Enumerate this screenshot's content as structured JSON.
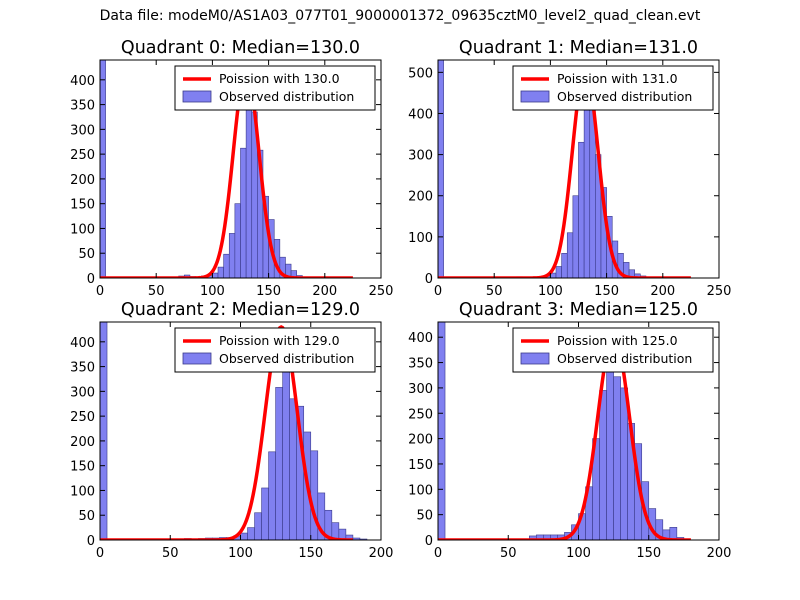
{
  "figure": {
    "suptitle": "Data file: modeM0/AS1A03_077T01_9000001372_09635cztM0_level2_quad_clean.evt"
  },
  "colors": {
    "hist_fill": "#8080f0",
    "hist_edge": "#3a3a8a",
    "poisson_line": "#ff0000",
    "legend_edge": "#000000"
  },
  "chart_data": [
    {
      "type": "bar",
      "title": "Quadrant 0: Median=130.0",
      "xlim": [
        0,
        250
      ],
      "ylim": [
        0,
        440
      ],
      "xticks": [
        0,
        50,
        100,
        150,
        200,
        250
      ],
      "yticks": [
        0,
        50,
        100,
        150,
        200,
        250,
        300,
        350,
        400
      ],
      "bin_width": 5,
      "legend": [
        "Poission with 130.0",
        "Observed distribution"
      ],
      "mu": 130,
      "peak": 420,
      "hist": [
        [
          0,
          440
        ],
        [
          70,
          4
        ],
        [
          75,
          6
        ],
        [
          80,
          3
        ],
        [
          85,
          2
        ],
        [
          90,
          4
        ],
        [
          95,
          5
        ],
        [
          100,
          10
        ],
        [
          105,
          22
        ],
        [
          110,
          48
        ],
        [
          115,
          90
        ],
        [
          120,
          150
        ],
        [
          125,
          262
        ],
        [
          130,
          380
        ],
        [
          135,
          335
        ],
        [
          140,
          258
        ],
        [
          145,
          165
        ],
        [
          150,
          118
        ],
        [
          155,
          78
        ],
        [
          160,
          42
        ],
        [
          165,
          28
        ],
        [
          170,
          15
        ],
        [
          175,
          5
        ]
      ]
    },
    {
      "type": "bar",
      "title": "Quadrant 1: Median=131.0",
      "xlim": [
        0,
        250
      ],
      "ylim": [
        0,
        530
      ],
      "xticks": [
        0,
        50,
        100,
        150,
        200,
        250
      ],
      "yticks": [
        0,
        100,
        200,
        300,
        400,
        500
      ],
      "bin_width": 5,
      "legend": [
        "Poission with 131.0",
        "Observed distribution"
      ],
      "mu": 131,
      "peak": 510,
      "hist": [
        [
          0,
          530
        ],
        [
          70,
          3
        ],
        [
          80,
          2
        ],
        [
          90,
          4
        ],
        [
          95,
          5
        ],
        [
          100,
          12
        ],
        [
          105,
          28
        ],
        [
          110,
          60
        ],
        [
          115,
          110
        ],
        [
          120,
          200
        ],
        [
          125,
          330
        ],
        [
          130,
          460
        ],
        [
          135,
          420
        ],
        [
          140,
          300
        ],
        [
          145,
          220
        ],
        [
          150,
          150
        ],
        [
          155,
          90
        ],
        [
          160,
          60
        ],
        [
          165,
          38
        ],
        [
          170,
          20
        ],
        [
          175,
          10
        ],
        [
          180,
          5
        ]
      ]
    },
    {
      "type": "bar",
      "title": "Quadrant 2: Median=129.0",
      "xlim": [
        0,
        200
      ],
      "ylim": [
        0,
        440
      ],
      "xticks": [
        0,
        50,
        100,
        150,
        200
      ],
      "yticks": [
        0,
        50,
        100,
        150,
        200,
        250,
        300,
        350,
        400
      ],
      "bin_width": 5,
      "legend": [
        "Poission with 129.0",
        "Observed distribution"
      ],
      "mu": 129,
      "peak": 430,
      "hist": [
        [
          0,
          440
        ],
        [
          60,
          3
        ],
        [
          70,
          3
        ],
        [
          75,
          4
        ],
        [
          80,
          4
        ],
        [
          85,
          5
        ],
        [
          90,
          5
        ],
        [
          95,
          8
        ],
        [
          100,
          14
        ],
        [
          105,
          25
        ],
        [
          110,
          55
        ],
        [
          115,
          105
        ],
        [
          120,
          178
        ],
        [
          125,
          308
        ],
        [
          130,
          420
        ],
        [
          135,
          285
        ],
        [
          140,
          270
        ],
        [
          145,
          218
        ],
        [
          150,
          180
        ],
        [
          155,
          95
        ],
        [
          160,
          60
        ],
        [
          165,
          35
        ],
        [
          170,
          22
        ],
        [
          175,
          10
        ],
        [
          180,
          4
        ],
        [
          185,
          2
        ]
      ]
    },
    {
      "type": "bar",
      "title": "Quadrant 3: Median=125.0",
      "xlim": [
        0,
        200
      ],
      "ylim": [
        0,
        430
      ],
      "xticks": [
        0,
        50,
        100,
        150,
        200
      ],
      "yticks": [
        0,
        50,
        100,
        150,
        200,
        250,
        300,
        350,
        400
      ],
      "bin_width": 5,
      "legend": [
        "Poission with 125.0",
        "Observed distribution"
      ],
      "mu": 125,
      "peak": 405,
      "hist": [
        [
          0,
          430
        ],
        [
          65,
          8
        ],
        [
          70,
          10
        ],
        [
          75,
          10
        ],
        [
          80,
          10
        ],
        [
          85,
          10
        ],
        [
          90,
          15
        ],
        [
          95,
          30
        ],
        [
          100,
          52
        ],
        [
          105,
          105
        ],
        [
          110,
          200
        ],
        [
          115,
          295
        ],
        [
          120,
          378
        ],
        [
          125,
          322
        ],
        [
          130,
          300
        ],
        [
          135,
          230
        ],
        [
          140,
          190
        ],
        [
          145,
          115
        ],
        [
          150,
          62
        ],
        [
          155,
          40
        ],
        [
          160,
          20
        ],
        [
          165,
          25
        ],
        [
          170,
          5
        ]
      ]
    }
  ]
}
